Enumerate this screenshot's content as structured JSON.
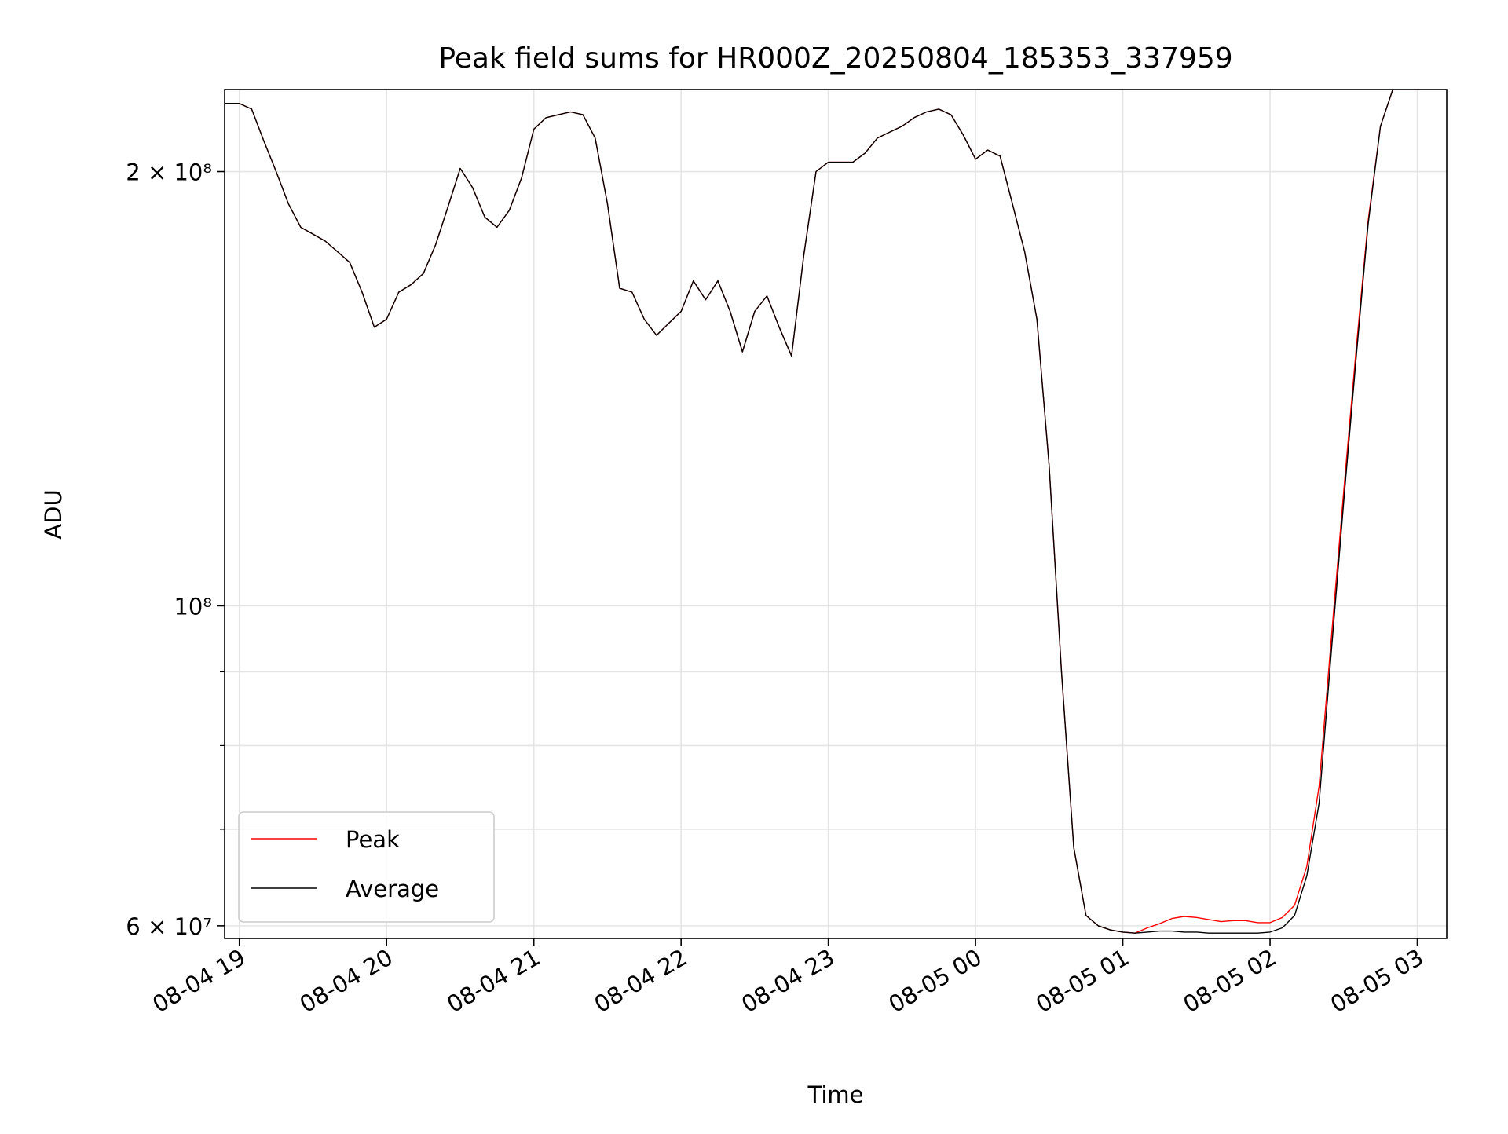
{
  "chart_data": {
    "type": "line",
    "title": "Peak field sums for HR000Z_20250804_185353_337959",
    "xlabel": "Time",
    "ylabel": "ADU",
    "yscale": "log",
    "ylim": [
      58800000,
      228000000
    ],
    "xlim": [
      "2025-08-04 18:54",
      "2025-08-05 03:12"
    ],
    "x_ticks": [
      "08-04 19",
      "08-04 20",
      "08-04 21",
      "08-04 22",
      "08-04 23",
      "08-05 00",
      "08-05 01",
      "08-05 02",
      "08-05 03"
    ],
    "y_ticks": [
      {
        "value": 60000000,
        "label": "6 × 10⁷"
      },
      {
        "value": 100000000,
        "label": "10⁸"
      },
      {
        "value": 200000000,
        "label": "2 × 10⁸"
      }
    ],
    "y_minor_ticks": [
      70000000,
      80000000,
      90000000
    ],
    "grid": true,
    "legend_position": "lower-left",
    "series": [
      {
        "name": "Peak",
        "color": "#ff0000",
        "x": [
          "2025-08-04 18:54",
          "2025-08-04 19:00",
          "2025-08-04 19:05",
          "2025-08-04 19:10",
          "2025-08-04 19:15",
          "2025-08-04 19:20",
          "2025-08-04 19:25",
          "2025-08-04 19:30",
          "2025-08-04 19:35",
          "2025-08-04 19:40",
          "2025-08-04 19:45",
          "2025-08-04 19:50",
          "2025-08-04 19:55",
          "2025-08-04 20:00",
          "2025-08-04 20:05",
          "2025-08-04 20:10",
          "2025-08-04 20:15",
          "2025-08-04 20:20",
          "2025-08-04 20:25",
          "2025-08-04 20:30",
          "2025-08-04 20:35",
          "2025-08-04 20:40",
          "2025-08-04 20:45",
          "2025-08-04 20:50",
          "2025-08-04 20:55",
          "2025-08-04 21:00",
          "2025-08-04 21:05",
          "2025-08-04 21:10",
          "2025-08-04 21:15",
          "2025-08-04 21:20",
          "2025-08-04 21:25",
          "2025-08-04 21:30",
          "2025-08-04 21:35",
          "2025-08-04 21:40",
          "2025-08-04 21:45",
          "2025-08-04 21:50",
          "2025-08-04 21:55",
          "2025-08-04 22:00",
          "2025-08-04 22:05",
          "2025-08-04 22:10",
          "2025-08-04 22:15",
          "2025-08-04 22:20",
          "2025-08-04 22:25",
          "2025-08-04 22:30",
          "2025-08-04 22:35",
          "2025-08-04 22:40",
          "2025-08-04 22:45",
          "2025-08-04 22:50",
          "2025-08-04 22:55",
          "2025-08-04 23:00",
          "2025-08-04 23:05",
          "2025-08-04 23:10",
          "2025-08-04 23:15",
          "2025-08-04 23:20",
          "2025-08-04 23:25",
          "2025-08-04 23:30",
          "2025-08-04 23:35",
          "2025-08-04 23:40",
          "2025-08-04 23:45",
          "2025-08-04 23:50",
          "2025-08-04 23:55",
          "2025-08-05 00:00",
          "2025-08-05 00:05",
          "2025-08-05 00:10",
          "2025-08-05 00:15",
          "2025-08-05 00:20",
          "2025-08-05 00:25",
          "2025-08-05 00:30",
          "2025-08-05 00:35",
          "2025-08-05 00:40",
          "2025-08-05 00:45",
          "2025-08-05 00:50",
          "2025-08-05 00:55",
          "2025-08-05 01:00",
          "2025-08-05 01:05",
          "2025-08-05 01:10",
          "2025-08-05 01:15",
          "2025-08-05 01:20",
          "2025-08-05 01:25",
          "2025-08-05 01:30",
          "2025-08-05 01:35",
          "2025-08-05 01:40",
          "2025-08-05 01:45",
          "2025-08-05 01:50",
          "2025-08-05 01:55",
          "2025-08-05 02:00",
          "2025-08-05 02:05",
          "2025-08-05 02:10",
          "2025-08-05 02:15",
          "2025-08-05 02:20",
          "2025-08-05 02:25",
          "2025-08-05 02:30",
          "2025-08-05 02:35",
          "2025-08-05 02:40",
          "2025-08-05 02:45",
          "2025-08-05 02:50",
          "2025-08-05 02:55",
          "2025-08-05 03:00"
        ],
        "y": [
          223000000,
          223000000,
          221000000,
          210000000,
          200000000,
          190000000,
          183000000,
          181000000,
          179000000,
          176000000,
          173000000,
          165000000,
          156000000,
          158000000,
          165000000,
          167000000,
          170000000,
          178000000,
          189000000,
          201000000,
          195000000,
          186000000,
          183000000,
          188000000,
          198000000,
          214000000,
          218000000,
          219000000,
          220000000,
          219000000,
          211000000,
          190000000,
          166000000,
          165000000,
          158000000,
          154000000,
          157000000,
          160000000,
          168000000,
          163000000,
          168000000,
          160000000,
          150000000,
          160000000,
          164000000,
          156000000,
          149000000,
          175000000,
          200000000,
          203000000,
          203000000,
          203000000,
          206000000,
          211000000,
          213000000,
          215000000,
          218000000,
          220000000,
          221000000,
          219000000,
          212000000,
          204000000,
          207000000,
          205000000,
          190000000,
          176000000,
          158000000,
          125000000,
          90000000,
          68000000,
          61000000,
          60000000,
          59600000,
          59400000,
          59300000,
          59800000,
          60200000,
          60700000,
          60900000,
          60800000,
          60600000,
          60400000,
          60500000,
          60500000,
          60300000,
          60300000,
          60800000,
          62000000,
          66000000,
          75000000,
          95000000,
          120000000,
          150000000,
          185000000,
          215000000,
          228000000,
          228000000,
          228000000
        ]
      },
      {
        "name": "Average",
        "color": "#000000",
        "x": [
          "2025-08-04 18:54",
          "2025-08-04 19:00",
          "2025-08-04 19:05",
          "2025-08-04 19:10",
          "2025-08-04 19:15",
          "2025-08-04 19:20",
          "2025-08-04 19:25",
          "2025-08-04 19:30",
          "2025-08-04 19:35",
          "2025-08-04 19:40",
          "2025-08-04 19:45",
          "2025-08-04 19:50",
          "2025-08-04 19:55",
          "2025-08-04 20:00",
          "2025-08-04 20:05",
          "2025-08-04 20:10",
          "2025-08-04 20:15",
          "2025-08-04 20:20",
          "2025-08-04 20:25",
          "2025-08-04 20:30",
          "2025-08-04 20:35",
          "2025-08-04 20:40",
          "2025-08-04 20:45",
          "2025-08-04 20:50",
          "2025-08-04 20:55",
          "2025-08-04 21:00",
          "2025-08-04 21:05",
          "2025-08-04 21:10",
          "2025-08-04 21:15",
          "2025-08-04 21:20",
          "2025-08-04 21:25",
          "2025-08-04 21:30",
          "2025-08-04 21:35",
          "2025-08-04 21:40",
          "2025-08-04 21:45",
          "2025-08-04 21:50",
          "2025-08-04 21:55",
          "2025-08-04 22:00",
          "2025-08-04 22:05",
          "2025-08-04 22:10",
          "2025-08-04 22:15",
          "2025-08-04 22:20",
          "2025-08-04 22:25",
          "2025-08-04 22:30",
          "2025-08-04 22:35",
          "2025-08-04 22:40",
          "2025-08-04 22:45",
          "2025-08-04 22:50",
          "2025-08-04 22:55",
          "2025-08-04 23:00",
          "2025-08-04 23:05",
          "2025-08-04 23:10",
          "2025-08-04 23:15",
          "2025-08-04 23:20",
          "2025-08-04 23:25",
          "2025-08-04 23:30",
          "2025-08-04 23:35",
          "2025-08-04 23:40",
          "2025-08-04 23:45",
          "2025-08-04 23:50",
          "2025-08-04 23:55",
          "2025-08-05 00:00",
          "2025-08-05 00:05",
          "2025-08-05 00:10",
          "2025-08-05 00:15",
          "2025-08-05 00:20",
          "2025-08-05 00:25",
          "2025-08-05 00:30",
          "2025-08-05 00:35",
          "2025-08-05 00:40",
          "2025-08-05 00:45",
          "2025-08-05 00:50",
          "2025-08-05 00:55",
          "2025-08-05 01:00",
          "2025-08-05 01:05",
          "2025-08-05 01:10",
          "2025-08-05 01:15",
          "2025-08-05 01:20",
          "2025-08-05 01:25",
          "2025-08-05 01:30",
          "2025-08-05 01:35",
          "2025-08-05 01:40",
          "2025-08-05 01:45",
          "2025-08-05 01:50",
          "2025-08-05 01:55",
          "2025-08-05 02:00",
          "2025-08-05 02:05",
          "2025-08-05 02:10",
          "2025-08-05 02:15",
          "2025-08-05 02:20",
          "2025-08-05 02:25",
          "2025-08-05 02:30",
          "2025-08-05 02:35",
          "2025-08-05 02:40",
          "2025-08-05 02:45",
          "2025-08-05 02:50",
          "2025-08-05 02:55",
          "2025-08-05 03:00"
        ],
        "y": [
          223000000,
          223000000,
          221000000,
          210000000,
          200000000,
          190000000,
          183000000,
          181000000,
          179000000,
          176000000,
          173000000,
          165000000,
          156000000,
          158000000,
          165000000,
          167000000,
          170000000,
          178000000,
          189000000,
          201000000,
          195000000,
          186000000,
          183000000,
          188000000,
          198000000,
          214000000,
          218000000,
          219000000,
          220000000,
          219000000,
          211000000,
          190000000,
          166000000,
          165000000,
          158000000,
          154000000,
          157000000,
          160000000,
          168000000,
          163000000,
          168000000,
          160000000,
          150000000,
          160000000,
          164000000,
          156000000,
          149000000,
          175000000,
          200000000,
          203000000,
          203000000,
          203000000,
          206000000,
          211000000,
          213000000,
          215000000,
          218000000,
          220000000,
          221000000,
          219000000,
          212000000,
          204000000,
          207000000,
          205000000,
          190000000,
          176000000,
          158000000,
          125000000,
          90000000,
          68000000,
          61000000,
          60000000,
          59600000,
          59400000,
          59300000,
          59400000,
          59500000,
          59500000,
          59400000,
          59400000,
          59300000,
          59300000,
          59300000,
          59300000,
          59300000,
          59400000,
          59800000,
          61000000,
          65000000,
          73000000,
          93000000,
          118000000,
          148000000,
          184000000,
          215000000,
          228000000,
          228000000,
          228000000
        ]
      }
    ]
  }
}
